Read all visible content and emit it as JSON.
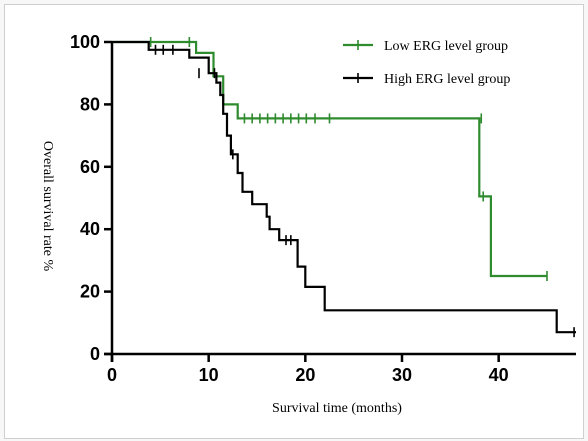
{
  "chart_data": {
    "type": "line",
    "subtype": "kaplan-meier step",
    "xlabel": "Survival time (months)",
    "ylabel": "Overall survival rate %",
    "xlim": [
      0,
      48
    ],
    "ylim": [
      0,
      100
    ],
    "xticks": [
      0,
      10,
      20,
      30,
      40
    ],
    "yticks": [
      0,
      20,
      40,
      60,
      80,
      100
    ],
    "grid": false,
    "legend_position": "top-right",
    "series": [
      {
        "name": "Low ERG level group",
        "color": "#2e8b2e",
        "steps": [
          [
            0,
            100
          ],
          [
            8.7,
            100
          ],
          [
            8.7,
            96.5
          ],
          [
            10.5,
            96.5
          ],
          [
            10.5,
            89
          ],
          [
            11.5,
            89
          ],
          [
            11.5,
            80
          ],
          [
            13,
            80
          ],
          [
            13,
            75.5
          ],
          [
            38,
            75.5
          ],
          [
            38,
            50.5
          ],
          [
            39.2,
            50.5
          ],
          [
            39.2,
            25
          ],
          [
            45,
            25
          ]
        ],
        "censors": [
          [
            4,
            100
          ],
          [
            8,
            100
          ],
          [
            13.7,
            75.5
          ],
          [
            14.5,
            75.5
          ],
          [
            15.3,
            75.5
          ],
          [
            16.1,
            75.5
          ],
          [
            16.9,
            75.5
          ],
          [
            17.7,
            75.5
          ],
          [
            18.5,
            75.5
          ],
          [
            19.3,
            75.5
          ],
          [
            20.1,
            75.5
          ],
          [
            21,
            75.5
          ],
          [
            22.5,
            75.5
          ],
          [
            38.2,
            75.5
          ],
          [
            38.4,
            50.5
          ],
          [
            45,
            25
          ]
        ]
      },
      {
        "name": "High ERG level group",
        "color": "#000000",
        "steps": [
          [
            0,
            100
          ],
          [
            3.8,
            100
          ],
          [
            3.8,
            97.5
          ],
          [
            8,
            97.5
          ],
          [
            8,
            95
          ],
          [
            10,
            95
          ],
          [
            10,
            90
          ],
          [
            10.8,
            90
          ],
          [
            10.8,
            87
          ],
          [
            11.2,
            87
          ],
          [
            11.2,
            83
          ],
          [
            11.5,
            83
          ],
          [
            11.5,
            77
          ],
          [
            11.9,
            77
          ],
          [
            11.9,
            70
          ],
          [
            12.3,
            70
          ],
          [
            12.3,
            64
          ],
          [
            13,
            64
          ],
          [
            13,
            58
          ],
          [
            13.5,
            58
          ],
          [
            13.5,
            52
          ],
          [
            14.5,
            52
          ],
          [
            14.5,
            48
          ],
          [
            16,
            48
          ],
          [
            16,
            44
          ],
          [
            16.3,
            44
          ],
          [
            16.3,
            40
          ],
          [
            17.3,
            40
          ],
          [
            17.3,
            36.5
          ],
          [
            19.2,
            36.5
          ],
          [
            19.2,
            28
          ],
          [
            20,
            28
          ],
          [
            20,
            21.5
          ],
          [
            22,
            21.5
          ],
          [
            22,
            14
          ],
          [
            46,
            14
          ],
          [
            46,
            7
          ],
          [
            48,
            7
          ]
        ],
        "censors": [
          [
            4.5,
            97.5
          ],
          [
            5.3,
            97.5
          ],
          [
            6.3,
            97.5
          ],
          [
            9,
            90
          ],
          [
            10.6,
            90
          ],
          [
            12.5,
            64
          ],
          [
            18,
            36.5
          ],
          [
            18.5,
            36.5
          ],
          [
            47.8,
            7
          ]
        ]
      }
    ]
  }
}
